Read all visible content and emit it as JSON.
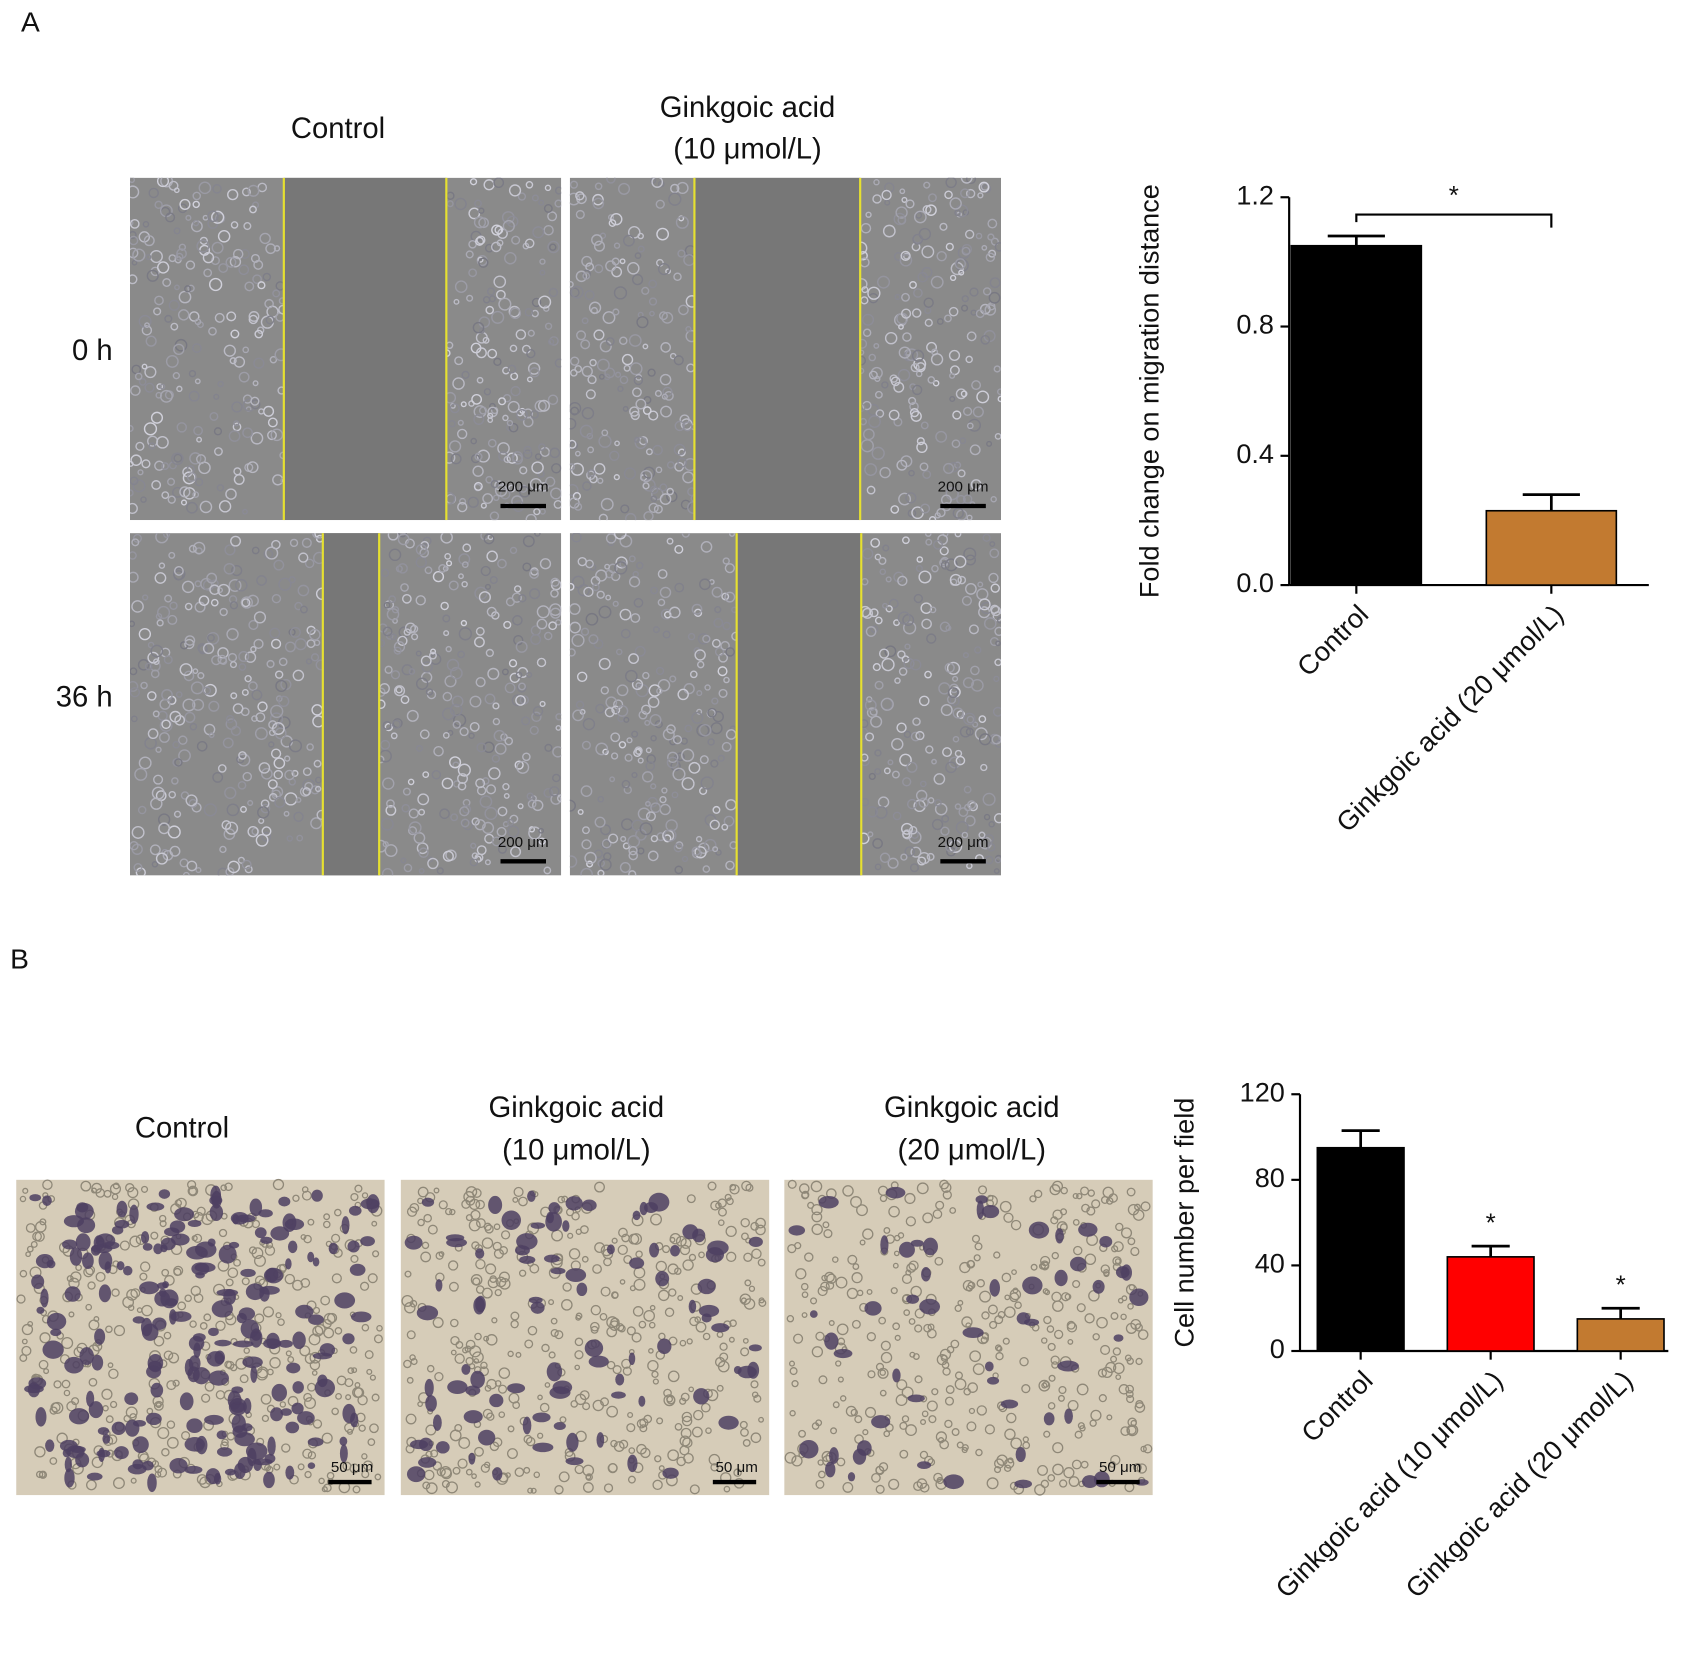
{
  "panel_labels": [
    "A",
    "B"
  ],
  "wound_healing": {
    "columns": [
      [
        "Control"
      ],
      [
        "Ginkgoic acid",
        "(10 μmol/L)"
      ]
    ],
    "rows": [
      "0 h",
      "36 h"
    ],
    "scale_bar": "200 μm"
  },
  "transwell": {
    "columns": [
      [
        "Control"
      ],
      [
        "Ginkgoic acid",
        "(10 μmol/L)"
      ],
      [
        "Ginkgoic acid",
        "(20 μmol/L)"
      ]
    ],
    "scale_bar": "50 μm"
  },
  "chart_data": [
    {
      "type": "bar",
      "y_label": "Fold change on migration distance",
      "categories": [
        "Control",
        "Ginkgoic acid (20 μmol/L)"
      ],
      "values": [
        1.05,
        0.23
      ],
      "errors": [
        0.03,
        0.05
      ],
      "colors": [
        "#000000",
        "#c27a30"
      ],
      "ylim": [
        0,
        1.2
      ],
      "yticks": [
        {
          "value": 0,
          "label": "0.0"
        },
        {
          "value": 0.4,
          "label": "0.4"
        },
        {
          "value": 0.8,
          "label": "0.8"
        },
        {
          "value": 1.2,
          "label": "1.2"
        }
      ],
      "annotation": "*"
    },
    {
      "type": "bar",
      "y_label": "Cell number per field",
      "categories": [
        "Control",
        "Ginkgoic acid (10 μmol/L)",
        "Ginkgoic acid (20 μmol/L)"
      ],
      "values": [
        95,
        44,
        15
      ],
      "errors": [
        8,
        5,
        5
      ],
      "colors": [
        "#000000",
        "#ff0000",
        "#c27a30"
      ],
      "value_annotations": [
        null,
        "*",
        "*"
      ],
      "ylim": [
        0,
        120
      ],
      "yticks": [
        0,
        40,
        80,
        120
      ]
    }
  ]
}
